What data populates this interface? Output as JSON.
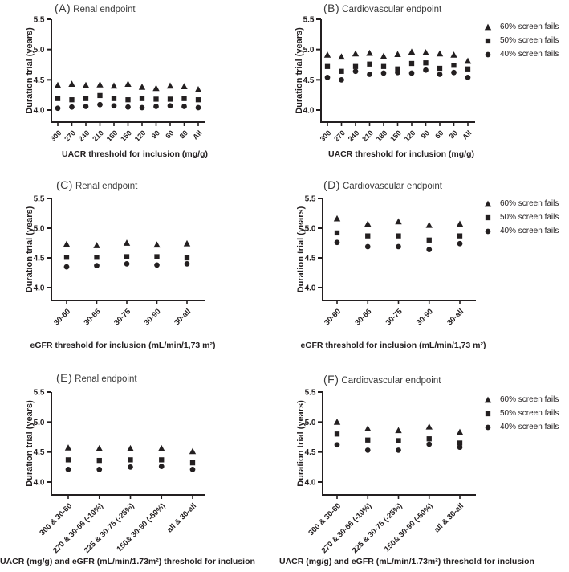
{
  "figure": {
    "ink_color": "#231f20",
    "title_color": "#3a3a3a",
    "background": "#ffffff"
  },
  "legend": {
    "items": [
      {
        "marker": "triangle",
        "label": "60% screen fails"
      },
      {
        "marker": "square",
        "label": "50% screen fails"
      },
      {
        "marker": "circle",
        "label": "40% screen fails"
      }
    ]
  },
  "chart_data": [
    {
      "id": "A",
      "type": "scatter",
      "panel_label": "(A)",
      "title": "Renal endpoint",
      "xlabel": "UACR threshold for inclusion (mg/g)",
      "ylabel": "Duration trial (years)",
      "yticks": [
        "5.5",
        "5.0",
        "4.5",
        "4.0"
      ],
      "ylim": [
        3.8,
        5.5
      ],
      "grid": false,
      "categories": [
        "300",
        "270",
        "240",
        "210",
        "180",
        "150",
        "120",
        "90",
        "60",
        "30",
        "All"
      ],
      "series": [
        {
          "name": "60% screen fails",
          "marker": "triangle",
          "values": [
            4.41,
            4.43,
            4.41,
            4.42,
            4.4,
            4.43,
            4.38,
            4.36,
            4.4,
            4.39,
            4.34
          ]
        },
        {
          "name": "50% screen fails",
          "marker": "square",
          "values": [
            4.19,
            4.17,
            4.19,
            4.24,
            4.19,
            4.17,
            4.19,
            4.18,
            4.18,
            4.19,
            4.17
          ]
        },
        {
          "name": "40% screen fails",
          "marker": "circle",
          "values": [
            4.03,
            4.05,
            4.06,
            4.09,
            4.07,
            4.05,
            4.04,
            4.06,
            4.07,
            4.06,
            4.04
          ]
        }
      ]
    },
    {
      "id": "B",
      "type": "scatter",
      "panel_label": "(B)",
      "title": "Cardiovascular endpoint",
      "xlabel": "UACR threshold for inclusion (mg/g)",
      "ylabel": "Duration trial (years)",
      "yticks": [
        "5.5",
        "5.0",
        "4.5",
        "4.0"
      ],
      "ylim": [
        3.8,
        5.5
      ],
      "grid": false,
      "categories": [
        "300",
        "270",
        "240",
        "210",
        "180",
        "150",
        "120",
        "90",
        "60",
        "30",
        "All"
      ],
      "series": [
        {
          "name": "60% screen fails",
          "marker": "triangle",
          "values": [
            4.91,
            4.88,
            4.93,
            4.94,
            4.89,
            4.92,
            4.96,
            4.95,
            4.93,
            4.91,
            4.81
          ]
        },
        {
          "name": "50% screen fails",
          "marker": "square",
          "values": [
            4.72,
            4.64,
            4.72,
            4.76,
            4.72,
            4.68,
            4.77,
            4.78,
            4.69,
            4.74,
            4.68
          ]
        },
        {
          "name": "40% screen fails",
          "marker": "circle",
          "values": [
            4.54,
            4.5,
            4.64,
            4.59,
            4.61,
            4.62,
            4.61,
            4.66,
            4.59,
            4.62,
            4.54
          ]
        }
      ]
    },
    {
      "id": "C",
      "type": "scatter",
      "panel_label": "(C)",
      "title": "Renal endpoint",
      "xlabel": "eGFR threshold for inclusion (mL/min/1,73 m²)",
      "ylabel": "Duration trial (years)",
      "yticks": [
        "5.5",
        "5.0",
        "4.5",
        "4.0"
      ],
      "ylim": [
        3.8,
        5.5
      ],
      "grid": false,
      "categories": [
        "30-60",
        "30-66",
        "30-75",
        "30-90",
        "30-all"
      ],
      "series": [
        {
          "name": "60% screen fails",
          "marker": "triangle",
          "values": [
            4.73,
            4.71,
            4.75,
            4.72,
            4.74
          ]
        },
        {
          "name": "50% screen fails",
          "marker": "square",
          "values": [
            4.51,
            4.51,
            4.52,
            4.52,
            4.5
          ]
        },
        {
          "name": "40% screen fails",
          "marker": "circle",
          "values": [
            4.35,
            4.37,
            4.4,
            4.38,
            4.4
          ]
        }
      ]
    },
    {
      "id": "D",
      "type": "scatter",
      "panel_label": "(D)",
      "title": "Cardiovascular endpoint",
      "xlabel": "eGFR threshold for inclusion (mL/min/1,73 m²)",
      "ylabel": "Duration trial (years)",
      "yticks": [
        "5.5",
        "5.0",
        "4.5",
        "4.0"
      ],
      "ylim": [
        3.8,
        5.5
      ],
      "grid": false,
      "categories": [
        "30-60",
        "30-66",
        "30-75",
        "30-90",
        "30-all"
      ],
      "series": [
        {
          "name": "60% screen fails",
          "marker": "triangle",
          "values": [
            5.16,
            5.07,
            5.11,
            5.05,
            5.07
          ]
        },
        {
          "name": "50% screen fails",
          "marker": "square",
          "values": [
            4.92,
            4.87,
            4.87,
            4.8,
            4.87
          ]
        },
        {
          "name": "40% screen fails",
          "marker": "circle",
          "values": [
            4.76,
            4.69,
            4.69,
            4.64,
            4.74
          ]
        }
      ]
    },
    {
      "id": "E",
      "type": "scatter",
      "panel_label": "(E)",
      "title": "Renal endpoint",
      "xlabel": "UACR (mg/g) and eGFR (mL/min/1.73m²) threshold for inclusion",
      "ylabel": "Duration trial (years)",
      "yticks": [
        "5.5",
        "5.0",
        "4.5",
        "4.0"
      ],
      "ylim": [
        3.8,
        5.5
      ],
      "grid": false,
      "categories": [
        "300 & 30-60",
        "270 & 30-66 (-10%)",
        "225 & 30-75 (-25%)",
        "150& 30-90 (-50%)",
        "all & 30-all"
      ],
      "series": [
        {
          "name": "60% screen fails",
          "marker": "triangle",
          "values": [
            4.57,
            4.56,
            4.56,
            4.56,
            4.51
          ]
        },
        {
          "name": "50% screen fails",
          "marker": "square",
          "values": [
            4.37,
            4.36,
            4.37,
            4.37,
            4.32
          ]
        },
        {
          "name": "40% screen fails",
          "marker": "circle",
          "values": [
            4.21,
            4.21,
            4.25,
            4.26,
            4.21
          ]
        }
      ]
    },
    {
      "id": "F",
      "type": "scatter",
      "panel_label": "(F)",
      "title": "Cardiovascular endpoint",
      "xlabel": "UACR (mg/g) and eGFR (mL/min/1.73m²) threshold for inclusion",
      "ylabel": "Duration trial (years)",
      "yticks": [
        "5.5",
        "5.0",
        "4.5",
        "4.0"
      ],
      "ylim": [
        3.8,
        5.5
      ],
      "grid": false,
      "categories": [
        "300 & 30-60",
        "270 & 30-66 (-10%)",
        "225 & 30-75 (-25%)",
        "150& 30-90 (-50%)",
        "all & 30-all"
      ],
      "series": [
        {
          "name": "60% screen fails",
          "marker": "triangle",
          "values": [
            5.0,
            4.89,
            4.86,
            4.92,
            4.83
          ]
        },
        {
          "name": "50% screen fails",
          "marker": "square",
          "values": [
            4.8,
            4.7,
            4.69,
            4.72,
            4.65
          ]
        },
        {
          "name": "40% screen fails",
          "marker": "circle",
          "values": [
            4.62,
            4.53,
            4.53,
            4.63,
            4.58
          ]
        }
      ]
    }
  ]
}
